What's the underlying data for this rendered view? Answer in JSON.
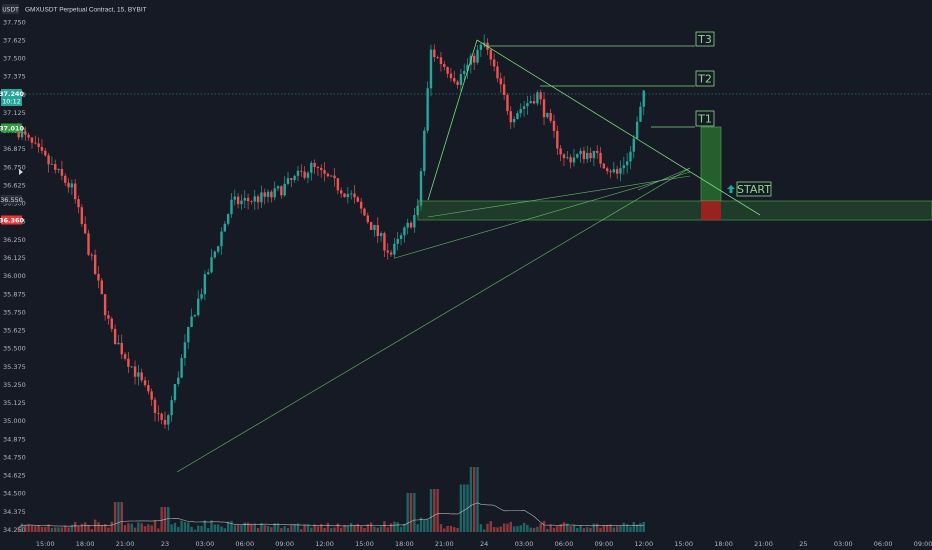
{
  "header": {
    "currency": "USDT",
    "symbol_info": "GMXUSDT Perpetual Contract, 15, BYBIT"
  },
  "price_axis": {
    "ticks": [
      "37.750",
      "37.625",
      "37.500",
      "37.375",
      "37.250",
      "37.125",
      "37.000",
      "36.875",
      "36.750",
      "36.625",
      "36.500",
      "36.375",
      "36.250",
      "36.125",
      "36.000",
      "35.875",
      "35.750",
      "35.625",
      "35.500",
      "35.375",
      "35.250",
      "35.125",
      "35.000",
      "34.875",
      "34.750",
      "34.625",
      "34.500",
      "34.375",
      "34.250"
    ],
    "current_price": "37.240",
    "countdown": "10:12",
    "tag_green": "37.010",
    "tag_dark": "36.550",
    "tag_red": "36.360"
  },
  "time_axis": {
    "labels": [
      "15:00",
      "18:00",
      "21:00",
      "23",
      "03:00",
      "06:00",
      "09:00",
      "12:00",
      "15:00",
      "18:00",
      "21:00",
      "24",
      "03:00",
      "06:00",
      "09:00",
      "12:00",
      "15:00",
      "18:00",
      "21:00",
      "25",
      "03:00",
      "06:00",
      "09:00"
    ]
  },
  "annotations": {
    "t1": "T1",
    "t2": "T2",
    "t3": "T3",
    "start": "START"
  },
  "colors": {
    "background": "#161a25",
    "up": "#26a69a",
    "down": "#ef5350",
    "trendline": "#7ddb7d",
    "target_box": "#8fd68f",
    "zone": "#2e7d32",
    "loss": "#b71c1c"
  },
  "chart_data": {
    "type": "candlestick",
    "timeframe": "15",
    "ylim": [
      34.2,
      37.8
    ],
    "anchor_points": [
      {
        "time": "22 13:00",
        "close": 37.0
      },
      {
        "time": "22 17:00",
        "close": 36.6
      },
      {
        "time": "22 20:00",
        "close": 35.6
      },
      {
        "time": "22 22:00",
        "close": 35.3
      },
      {
        "time": "23 00:00",
        "close": 34.95
      },
      {
        "time": "23 02:00",
        "close": 35.7
      },
      {
        "time": "23 05:00",
        "close": 36.5
      },
      {
        "time": "23 08:00",
        "close": 36.55
      },
      {
        "time": "23 11:00",
        "close": 36.75
      },
      {
        "time": "23 14:00",
        "close": 36.55
      },
      {
        "time": "23 17:00",
        "close": 36.15
      },
      {
        "time": "23 19:00",
        "close": 36.45
      },
      {
        "time": "23 20:00",
        "close": 37.55
      },
      {
        "time": "23 22:00",
        "close": 37.35
      },
      {
        "time": "24 00:00",
        "close": 37.6
      },
      {
        "time": "24 02:00",
        "close": 37.1
      },
      {
        "time": "24 04:00",
        "close": 37.25
      },
      {
        "time": "24 06:00",
        "close": 36.8
      },
      {
        "time": "24 08:00",
        "close": 36.85
      },
      {
        "time": "24 10:00",
        "close": 36.7
      },
      {
        "time": "24 11:00",
        "close": 36.85
      },
      {
        "time": "24 12:00",
        "close": 37.24
      }
    ],
    "trade_setup": {
      "entry_zone": [
        36.36,
        36.5
      ],
      "stop": 36.36,
      "targets": {
        "T1": 37.01,
        "T2": 37.36,
        "T3": 37.6
      }
    }
  }
}
